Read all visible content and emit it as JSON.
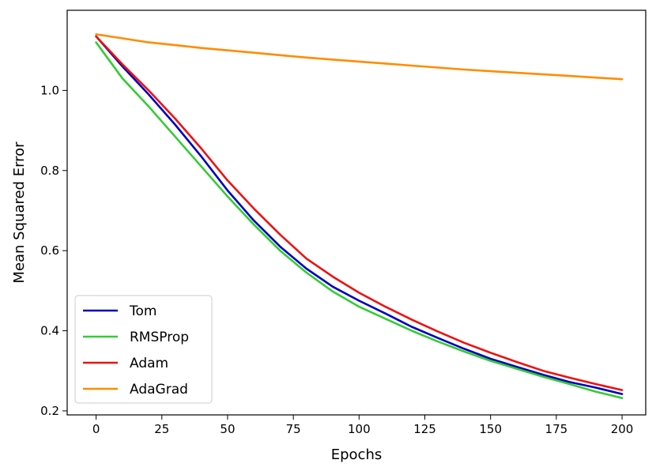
{
  "chart_data": {
    "type": "line",
    "xlabel": "Epochs",
    "ylabel": "Mean Squared Error",
    "xlim": [
      -11,
      209
    ],
    "ylim": [
      0.19,
      1.2
    ],
    "x_ticks": [
      0,
      25,
      50,
      75,
      100,
      125,
      150,
      175,
      200
    ],
    "y_ticks": [
      0.2,
      0.4,
      0.6,
      0.8,
      1.0
    ],
    "y_tick_labels": [
      "0.2",
      "0.4",
      "0.6",
      "0.8",
      "1.0"
    ],
    "grid": false,
    "legend_position": "bottom-left",
    "x": [
      0,
      10,
      20,
      30,
      40,
      50,
      60,
      70,
      80,
      90,
      100,
      110,
      120,
      130,
      140,
      150,
      160,
      170,
      180,
      190,
      200
    ],
    "series": [
      {
        "name": "Tom",
        "color": "#0000bf",
        "values": [
          1.135,
          1.06,
          0.99,
          0.915,
          0.835,
          0.75,
          0.675,
          0.61,
          0.555,
          0.51,
          0.475,
          0.443,
          0.41,
          0.382,
          0.355,
          0.33,
          0.31,
          0.29,
          0.272,
          0.258,
          0.242
        ]
      },
      {
        "name": "RMSProp",
        "color": "#33cc33",
        "values": [
          1.12,
          1.03,
          0.96,
          0.885,
          0.81,
          0.735,
          0.665,
          0.6,
          0.545,
          0.498,
          0.46,
          0.43,
          0.4,
          0.373,
          0.348,
          0.325,
          0.305,
          0.285,
          0.267,
          0.248,
          0.232
        ]
      },
      {
        "name": "Adam",
        "color": "#ee1111",
        "values": [
          1.135,
          1.065,
          1.0,
          0.93,
          0.855,
          0.775,
          0.705,
          0.64,
          0.58,
          0.535,
          0.495,
          0.46,
          0.428,
          0.398,
          0.37,
          0.345,
          0.322,
          0.3,
          0.283,
          0.267,
          0.252
        ]
      },
      {
        "name": "AdaGrad",
        "color": "#ff8c00",
        "values": [
          1.14,
          1.13,
          1.12,
          1.113,
          1.106,
          1.1,
          1.094,
          1.088,
          1.082,
          1.077,
          1.072,
          1.067,
          1.062,
          1.057,
          1.052,
          1.048,
          1.044,
          1.04,
          1.036,
          1.032,
          1.028
        ]
      }
    ]
  }
}
